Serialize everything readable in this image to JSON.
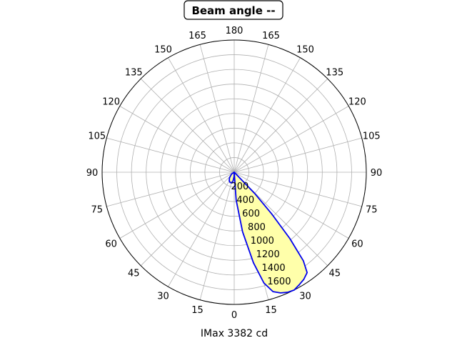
{
  "chart_data": {
    "type": "line",
    "subtype": "polar",
    "title": "Beam angle --",
    "xlabel": "IMax 3382 cd",
    "theta_zero": "bottom",
    "theta_direction": "both-sides-mirrored",
    "theta_tick_labels_right": [
      "0",
      "15",
      "30",
      "45",
      "60",
      "75",
      "90",
      "105",
      "120",
      "135",
      "150",
      "165",
      "180"
    ],
    "theta_tick_labels_left": [
      "15",
      "30",
      "45",
      "60",
      "75",
      "90",
      "105",
      "120",
      "135",
      "150",
      "165"
    ],
    "r_tick_labels": [
      "200",
      "400",
      "600",
      "800",
      "1000",
      "1200",
      "1400",
      "1600"
    ],
    "rlim": [
      0,
      1800
    ],
    "grid": true,
    "colors": {
      "line": "#0000ee",
      "fill": "#ffffaa",
      "grid": "#b0b0b0"
    },
    "series": [
      {
        "points": [
          {
            "theta": 0,
            "r": 0
          },
          {
            "theta": 4,
            "r": 380
          },
          {
            "theta": 8,
            "r": 820
          },
          {
            "theta": 12,
            "r": 1260
          },
          {
            "theta": 15,
            "r": 1560
          },
          {
            "theta": 18,
            "r": 1710
          },
          {
            "theta": 21,
            "r": 1760
          },
          {
            "theta": 24,
            "r": 1790
          },
          {
            "theta": 27,
            "r": 1800
          },
          {
            "theta": 30,
            "r": 1770
          },
          {
            "theta": 33,
            "r": 1740
          },
          {
            "theta": 36,
            "r": 1690
          },
          {
            "theta": 38,
            "r": 1530
          },
          {
            "theta": 40,
            "r": 1180
          },
          {
            "theta": 42,
            "r": 760
          },
          {
            "theta": 44,
            "r": 400
          },
          {
            "theta": 46,
            "r": 0
          }
        ]
      },
      {
        "points": [
          {
            "theta": 0,
            "r": 0
          },
          {
            "theta": -2,
            "r": 60
          },
          {
            "theta": -8,
            "r": 125
          },
          {
            "theta": -15,
            "r": 150
          },
          {
            "theta": -22,
            "r": 150
          },
          {
            "theta": -30,
            "r": 135
          },
          {
            "theta": -40,
            "r": 100
          },
          {
            "theta": -55,
            "r": 45
          },
          {
            "theta": -70,
            "r": 0
          }
        ]
      }
    ]
  }
}
